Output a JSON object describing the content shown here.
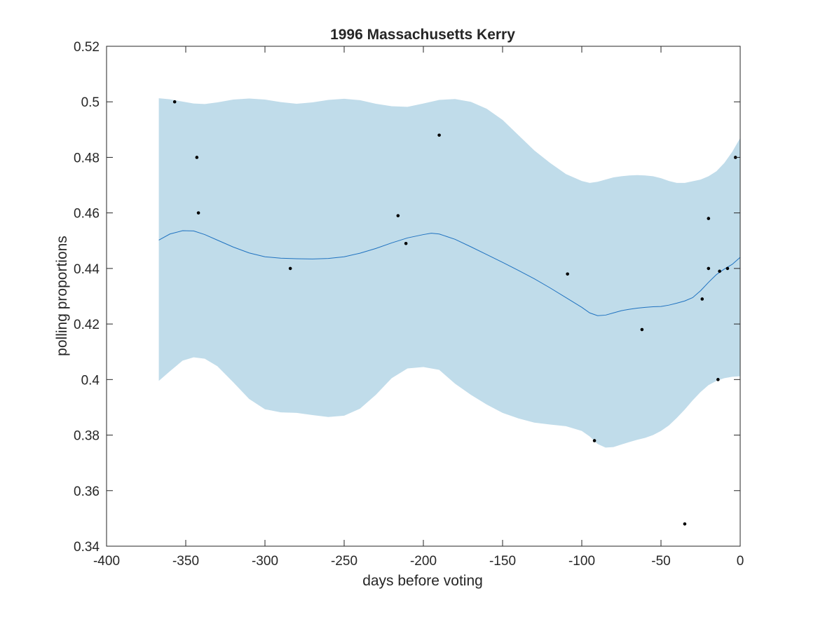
{
  "chart_data": {
    "type": "line",
    "title": "1996 Massachusetts Kerry",
    "xlabel": "days before voting",
    "ylabel": "polling proportions",
    "xlim": [
      -400,
      0
    ],
    "ylim": [
      0.34,
      0.52
    ],
    "xticks": [
      -400,
      -350,
      -300,
      -250,
      -200,
      -150,
      -100,
      -50,
      0
    ],
    "xtick_labels": [
      "-400",
      "-350",
      "-300",
      "-250",
      "-200",
      "-150",
      "-100",
      "-50",
      "0"
    ],
    "yticks": [
      0.34,
      0.36,
      0.38,
      0.4,
      0.42,
      0.44,
      0.46,
      0.48,
      0.5,
      0.52
    ],
    "ytick_labels": [
      "0.34",
      "0.36",
      "0.38",
      "0.4",
      "0.42",
      "0.44",
      "0.46",
      "0.48",
      "0.5",
      "0.52"
    ],
    "grid": false,
    "colors": {
      "band": "#c0dcea",
      "line": "#1f72c0",
      "points": "#000000",
      "axis": "#262626"
    },
    "series": [
      {
        "kind": "band",
        "x": [
          -367,
          -360,
          -352,
          -345,
          -338,
          -330,
          -320,
          -310,
          -300,
          -290,
          -280,
          -270,
          -260,
          -250,
          -240,
          -230,
          -220,
          -210,
          -200,
          -190,
          -180,
          -170,
          -160,
          -150,
          -140,
          -130,
          -120,
          -110,
          -100,
          -95,
          -90,
          -85,
          -80,
          -75,
          -70,
          -65,
          -60,
          -55,
          -50,
          -45,
          -40,
          -35,
          -30,
          -25,
          -20,
          -15,
          -10,
          -5,
          0
        ],
        "upper": [
          0.5013,
          0.5009,
          0.5001,
          0.4994,
          0.4992,
          0.4998,
          0.5008,
          0.5012,
          0.5008,
          0.4999,
          0.4993,
          0.4998,
          0.5007,
          0.5011,
          0.5006,
          0.4993,
          0.4984,
          0.4982,
          0.4994,
          0.5007,
          0.501,
          0.5,
          0.4975,
          0.4935,
          0.488,
          0.4825,
          0.478,
          0.474,
          0.4715,
          0.4708,
          0.4712,
          0.472,
          0.4728,
          0.4732,
          0.4735,
          0.4736,
          0.4735,
          0.4732,
          0.4725,
          0.4715,
          0.4708,
          0.4708,
          0.4714,
          0.472,
          0.4732,
          0.475,
          0.478,
          0.482,
          0.487
        ],
        "lower": [
          0.3995,
          0.403,
          0.4068,
          0.408,
          0.4075,
          0.4048,
          0.399,
          0.393,
          0.3893,
          0.3882,
          0.388,
          0.3872,
          0.3865,
          0.387,
          0.3895,
          0.3945,
          0.4005,
          0.404,
          0.4045,
          0.4035,
          0.3985,
          0.3945,
          0.391,
          0.388,
          0.386,
          0.3845,
          0.3838,
          0.3832,
          0.3815,
          0.3795,
          0.3768,
          0.3755,
          0.3757,
          0.3766,
          0.3775,
          0.3783,
          0.379,
          0.38,
          0.3815,
          0.3835,
          0.3862,
          0.3892,
          0.3925,
          0.3955,
          0.398,
          0.3995,
          0.4005,
          0.401,
          0.4012
        ]
      },
      {
        "kind": "line",
        "x": [
          -367,
          -360,
          -352,
          -345,
          -338,
          -330,
          -320,
          -310,
          -300,
          -290,
          -280,
          -270,
          -260,
          -250,
          -240,
          -230,
          -220,
          -210,
          -200,
          -195,
          -190,
          -180,
          -170,
          -160,
          -150,
          -140,
          -130,
          -120,
          -110,
          -100,
          -95,
          -90,
          -85,
          -80,
          -75,
          -70,
          -65,
          -60,
          -55,
          -50,
          -45,
          -40,
          -35,
          -30,
          -25,
          -20,
          -15,
          -10,
          -5,
          0
        ],
        "y": [
          0.4502,
          0.4524,
          0.4536,
          0.4535,
          0.4522,
          0.4502,
          0.4477,
          0.4456,
          0.4442,
          0.4437,
          0.4435,
          0.4434,
          0.4436,
          0.4442,
          0.4455,
          0.4472,
          0.4492,
          0.451,
          0.4522,
          0.4527,
          0.4524,
          0.4505,
          0.4478,
          0.445,
          0.4422,
          0.4393,
          0.4363,
          0.433,
          0.4295,
          0.426,
          0.424,
          0.423,
          0.4232,
          0.424,
          0.4248,
          0.4253,
          0.4257,
          0.426,
          0.4262,
          0.4263,
          0.4268,
          0.4275,
          0.4283,
          0.4295,
          0.432,
          0.435,
          0.4378,
          0.4398,
          0.4415,
          0.444
        ]
      },
      {
        "kind": "scatter",
        "x": [
          -357,
          -343,
          -342,
          -284,
          -216,
          -211,
          -190,
          -109,
          -92,
          -62,
          -35,
          -24,
          -20,
          -20,
          -14,
          -13,
          -8,
          -3
        ],
        "y": [
          0.5,
          0.48,
          0.46,
          0.44,
          0.459,
          0.449,
          0.488,
          0.438,
          0.378,
          0.418,
          0.348,
          0.429,
          0.44,
          0.458,
          0.4,
          0.439,
          0.44,
          0.48
        ]
      }
    ]
  }
}
